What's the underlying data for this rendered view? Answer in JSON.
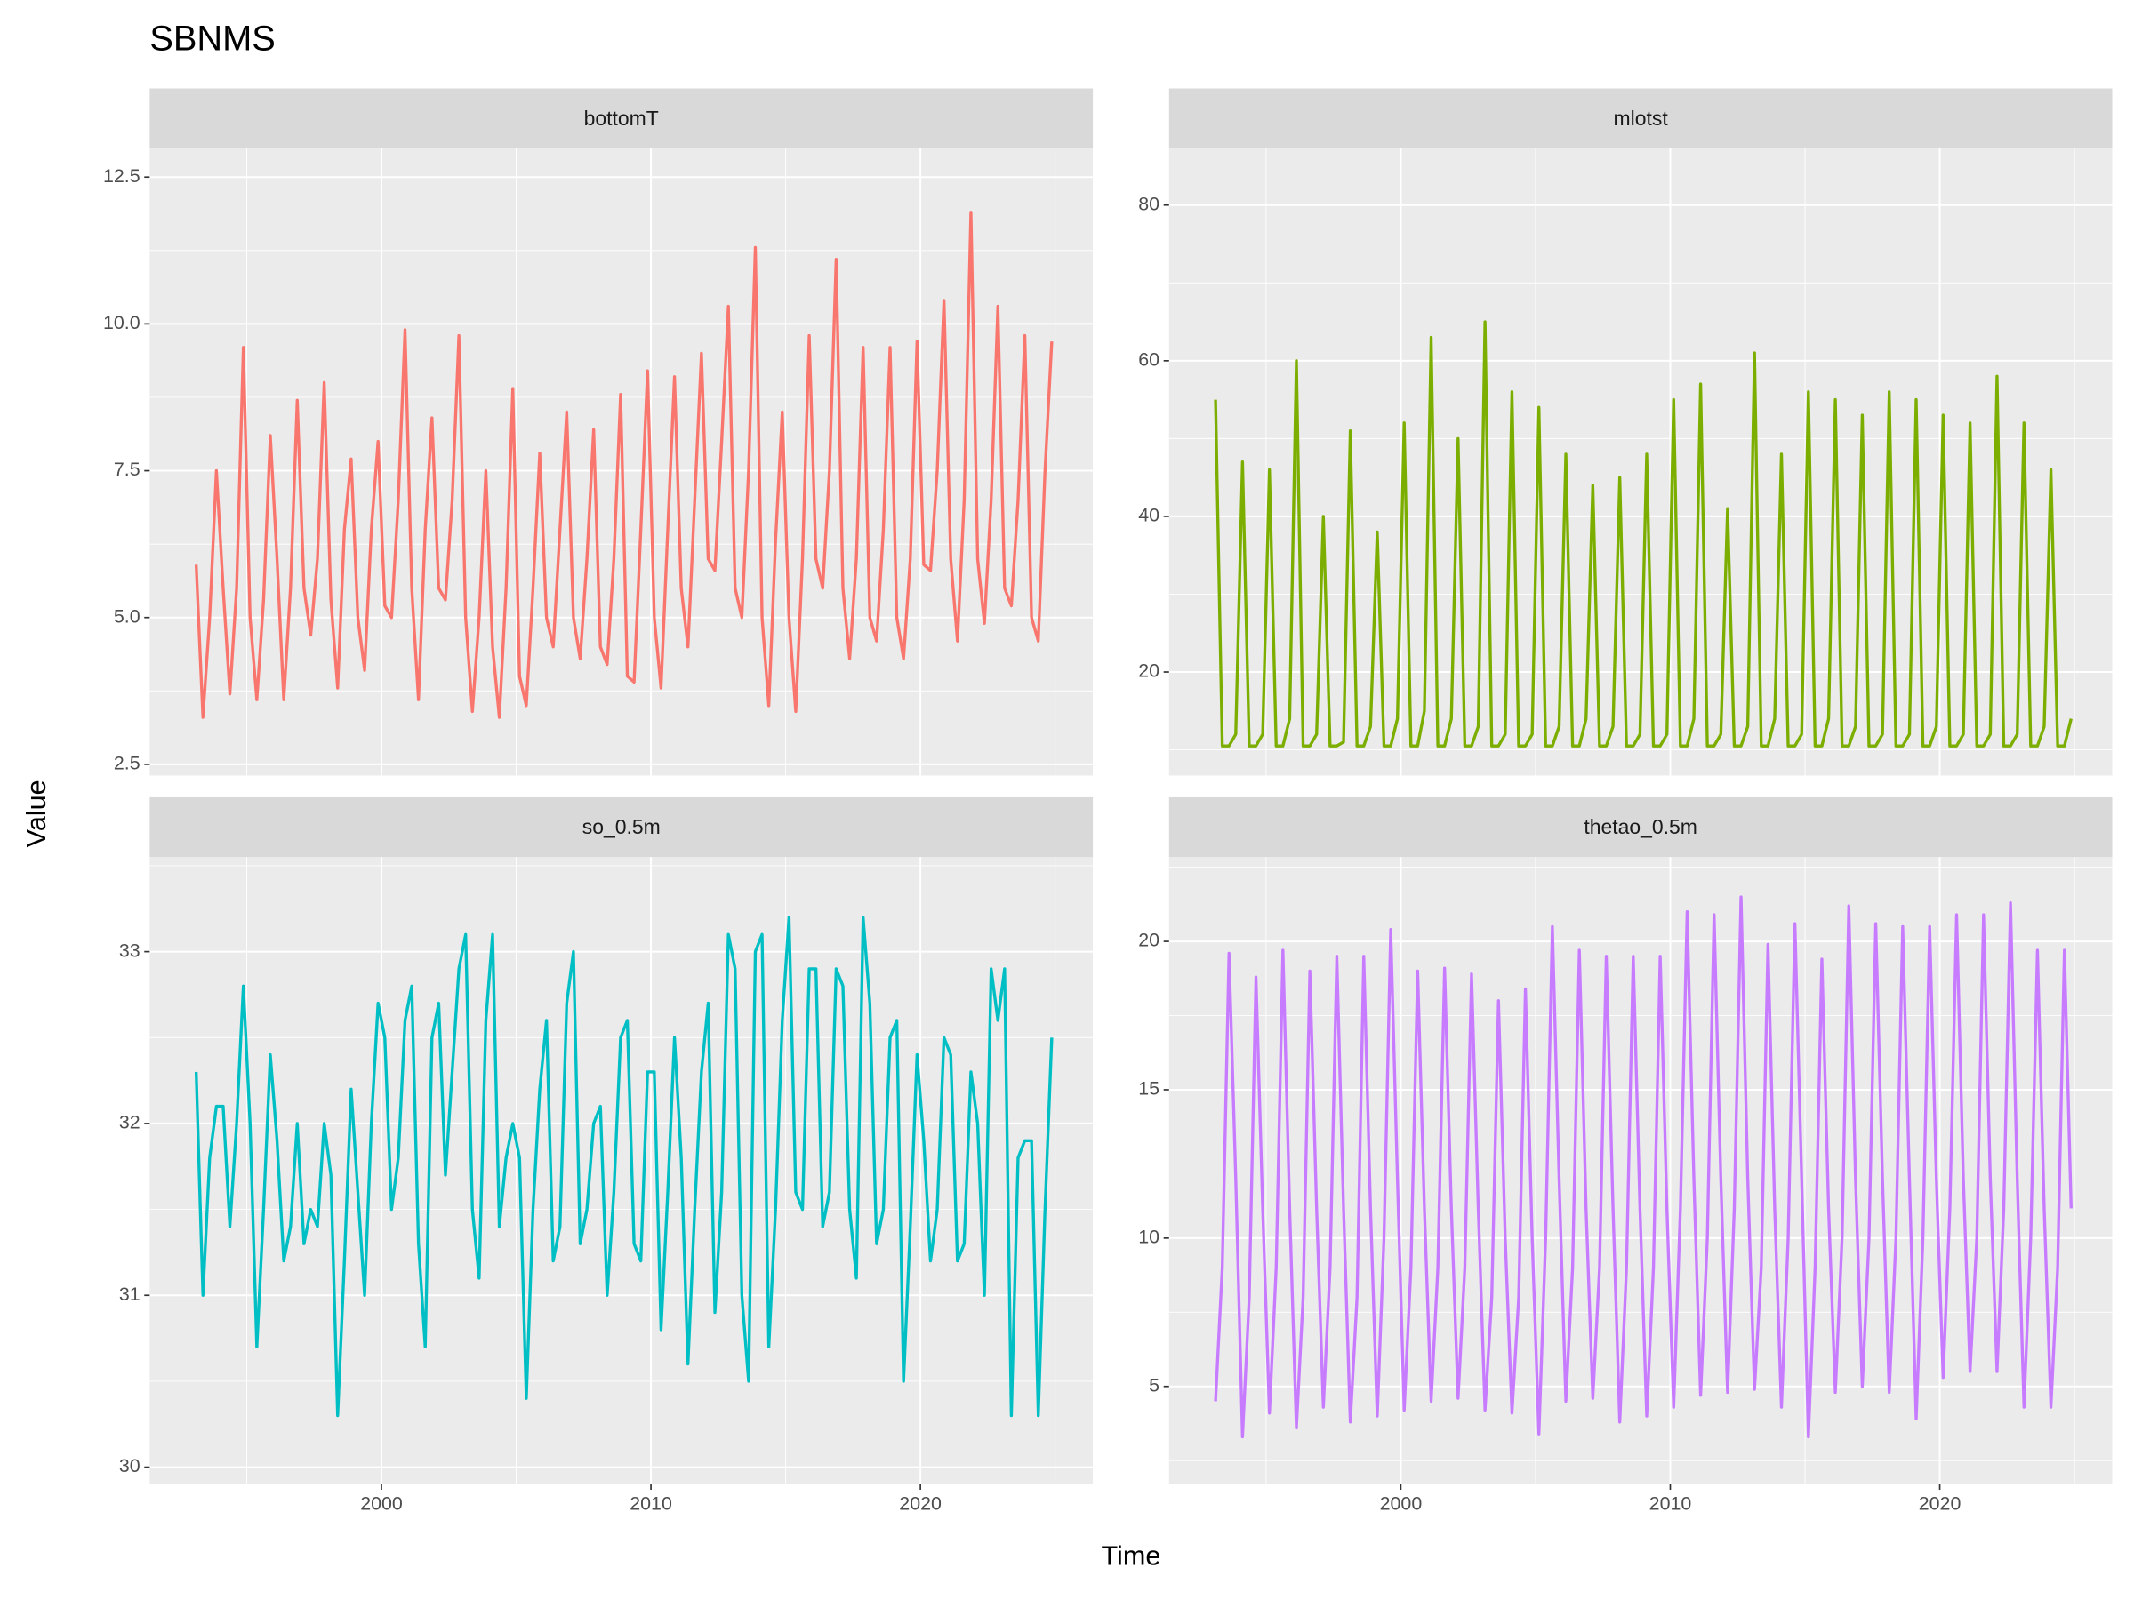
{
  "title": "SBNMS",
  "x_label": "Time",
  "y_label": "Value",
  "chart_data": {
    "type": "line",
    "x": [
      1993.125,
      1993.375,
      1993.625,
      1993.875,
      1994.125,
      1994.375,
      1994.625,
      1994.875,
      1995.125,
      1995.375,
      1995.625,
      1995.875,
      1996.125,
      1996.375,
      1996.625,
      1996.875,
      1997.125,
      1997.375,
      1997.625,
      1997.875,
      1998.125,
      1998.375,
      1998.625,
      1998.875,
      1999.125,
      1999.375,
      1999.625,
      1999.875,
      2000.125,
      2000.375,
      2000.625,
      2000.875,
      2001.125,
      2001.375,
      2001.625,
      2001.875,
      2002.125,
      2002.375,
      2002.625,
      2002.875,
      2003.125,
      2003.375,
      2003.625,
      2003.875,
      2004.125,
      2004.375,
      2004.625,
      2004.875,
      2005.125,
      2005.375,
      2005.625,
      2005.875,
      2006.125,
      2006.375,
      2006.625,
      2006.875,
      2007.125,
      2007.375,
      2007.625,
      2007.875,
      2008.125,
      2008.375,
      2008.625,
      2008.875,
      2009.125,
      2009.375,
      2009.625,
      2009.875,
      2010.125,
      2010.375,
      2010.625,
      2010.875,
      2011.125,
      2011.375,
      2011.625,
      2011.875,
      2012.125,
      2012.375,
      2012.625,
      2012.875,
      2013.125,
      2013.375,
      2013.625,
      2013.875,
      2014.125,
      2014.375,
      2014.625,
      2014.875,
      2015.125,
      2015.375,
      2015.625,
      2015.875,
      2016.125,
      2016.375,
      2016.625,
      2016.875,
      2017.125,
      2017.375,
      2017.625,
      2017.875,
      2018.125,
      2018.375,
      2018.625,
      2018.875,
      2019.125,
      2019.375,
      2019.625,
      2019.875,
      2020.125,
      2020.375,
      2020.625,
      2020.875,
      2021.125,
      2021.375,
      2021.625,
      2021.875,
      2022.125,
      2022.375,
      2022.625,
      2022.875,
      2023.125,
      2023.375,
      2023.625,
      2023.875,
      2024.125,
      2024.375,
      2024.625,
      2024.875
    ],
    "xlim": [
      1991.4,
      2026.4
    ],
    "xticks": [
      2000,
      2010,
      2020
    ],
    "series": [
      {
        "name": "bottomT",
        "color": "#F8766D",
        "ylim": [
          2.31,
          12.99
        ],
        "yticks": [
          2.5,
          {
            "value": 5,
            "label": "5.0"
          },
          7.5,
          {
            "value": 10,
            "label": "10.0"
          },
          12.5
        ],
        "values": [
          5.9,
          3.3,
          5.0,
          7.5,
          5.5,
          3.7,
          5.5,
          9.6,
          5.0,
          3.6,
          5.3,
          8.1,
          6.0,
          3.6,
          5.5,
          8.7,
          5.5,
          4.7,
          6.0,
          9.0,
          5.3,
          3.8,
          6.5,
          7.7,
          5.0,
          4.1,
          6.5,
          8.0,
          5.2,
          5.0,
          7.0,
          9.9,
          5.5,
          3.6,
          6.5,
          8.4,
          5.5,
          5.3,
          7.0,
          9.8,
          5.0,
          3.4,
          5.0,
          7.5,
          4.5,
          3.3,
          5.5,
          8.9,
          4.0,
          3.5,
          5.5,
          7.8,
          5.0,
          4.5,
          6.5,
          8.5,
          5.0,
          4.3,
          6.0,
          8.2,
          4.5,
          4.2,
          6.0,
          8.8,
          4.0,
          3.9,
          6.5,
          9.2,
          5.0,
          3.8,
          6.5,
          9.1,
          5.5,
          4.5,
          7.0,
          9.5,
          6.0,
          5.8,
          8.0,
          10.3,
          5.5,
          5.0,
          7.5,
          11.3,
          5.0,
          3.5,
          6.3,
          8.5,
          5.0,
          3.4,
          6.0,
          9.8,
          6.0,
          5.5,
          7.5,
          11.1,
          5.5,
          4.3,
          6.0,
          9.6,
          5.0,
          4.6,
          6.5,
          9.6,
          5.0,
          4.3,
          6.0,
          9.7,
          5.9,
          5.8,
          7.5,
          10.4,
          6.0,
          4.6,
          7.0,
          11.9,
          6.0,
          4.9,
          7.0,
          10.3,
          5.5,
          5.2,
          7.0,
          9.8,
          5.0,
          4.6,
          7.5,
          9.7
        ]
      },
      {
        "name": "mlotst",
        "color": "#7CAE00",
        "ylim": [
          6.7,
          87.3
        ],
        "yticks": [
          20,
          40,
          60,
          80
        ],
        "values": [
          55,
          10.5,
          10.5,
          12,
          47,
          10.5,
          10.5,
          12,
          46,
          10.5,
          10.5,
          14,
          60,
          10.5,
          10.5,
          12,
          40,
          10.5,
          10.5,
          11,
          51,
          10.5,
          10.5,
          13,
          38,
          10.5,
          10.5,
          14,
          52,
          10.5,
          10.5,
          15,
          63,
          10.5,
          10.5,
          14,
          50,
          10.5,
          10.5,
          13,
          65,
          10.5,
          10.5,
          12,
          56,
          10.5,
          10.5,
          12,
          54,
          10.5,
          10.5,
          13,
          48,
          10.5,
          10.5,
          14,
          44,
          10.5,
          10.5,
          13,
          45,
          10.5,
          10.5,
          12,
          48,
          10.5,
          10.5,
          12,
          55,
          10.5,
          10.5,
          14,
          57,
          10.5,
          10.5,
          12,
          41,
          10.5,
          10.5,
          13,
          61,
          10.5,
          10.5,
          14,
          48,
          10.5,
          10.5,
          12,
          56,
          10.5,
          10.5,
          14,
          55,
          10.5,
          10.5,
          13,
          53,
          10.5,
          10.5,
          12,
          56,
          10.5,
          10.5,
          12,
          55,
          10.5,
          10.5,
          13,
          53,
          10.5,
          10.5,
          12,
          52,
          10.5,
          10.5,
          12,
          58,
          10.5,
          10.5,
          12,
          52,
          10.5,
          10.5,
          13,
          46,
          10.5,
          10.5,
          14
        ]
      },
      {
        "name": "so_0.5m",
        "color": "#00BFC4",
        "ylim": [
          29.9,
          33.55
        ],
        "yticks": [
          30,
          31,
          32,
          33
        ],
        "values": [
          32.3,
          31.0,
          31.8,
          32.1,
          32.1,
          31.4,
          32.0,
          32.8,
          32.0,
          30.7,
          31.5,
          32.4,
          31.9,
          31.2,
          31.4,
          32.0,
          31.3,
          31.5,
          31.4,
          32.0,
          31.7,
          30.3,
          31.2,
          32.2,
          31.6,
          31.0,
          32.0,
          32.7,
          32.5,
          31.5,
          31.8,
          32.6,
          32.8,
          31.3,
          30.7,
          32.5,
          32.7,
          31.7,
          32.3,
          32.9,
          33.1,
          31.5,
          31.1,
          32.6,
          33.1,
          31.4,
          31.8,
          32.0,
          31.8,
          30.4,
          31.5,
          32.2,
          32.6,
          31.2,
          31.4,
          32.7,
          33.0,
          31.3,
          31.5,
          32.0,
          32.1,
          31.0,
          31.6,
          32.5,
          32.6,
          31.3,
          31.2,
          32.3,
          32.3,
          30.8,
          31.6,
          32.5,
          31.8,
          30.6,
          31.5,
          32.3,
          32.7,
          30.9,
          31.6,
          33.1,
          32.9,
          31.0,
          30.5,
          33.0,
          33.1,
          30.7,
          31.5,
          32.6,
          33.2,
          31.6,
          31.5,
          32.9,
          32.9,
          31.4,
          31.6,
          32.9,
          32.8,
          31.5,
          31.1,
          33.2,
          32.7,
          31.3,
          31.5,
          32.5,
          32.6,
          30.5,
          31.4,
          32.4,
          31.9,
          31.2,
          31.5,
          32.5,
          32.4,
          31.2,
          31.3,
          32.3,
          32.0,
          31.0,
          32.9,
          32.6,
          32.9,
          30.3,
          31.8,
          31.9,
          31.9,
          30.3,
          31.5,
          32.5
        ]
      },
      {
        "name": "thetao_0.5m",
        "color": "#C77CFF",
        "ylim": [
          1.7,
          22.84
        ],
        "yticks": [
          5,
          10,
          15,
          20
        ],
        "values": [
          4.5,
          9,
          19.6,
          12,
          3.3,
          8,
          18.8,
          11,
          4.1,
          9,
          19.7,
          11,
          3.6,
          8,
          19.0,
          11,
          4.3,
          9,
          19.5,
          11,
          3.8,
          8,
          19.5,
          11,
          4.0,
          10,
          20.4,
          12,
          4.2,
          9,
          19.0,
          11,
          4.5,
          9,
          19.1,
          11,
          4.6,
          9,
          18.9,
          11,
          4.2,
          8,
          18.0,
          10,
          4.1,
          8,
          18.4,
          10,
          3.4,
          10,
          20.5,
          12,
          4.5,
          9,
          19.7,
          11,
          4.6,
          9,
          19.5,
          11,
          3.8,
          9,
          19.5,
          11,
          4.0,
          9,
          19.5,
          11,
          4.3,
          11,
          21.0,
          12,
          4.7,
          10,
          20.9,
          12,
          4.8,
          11,
          21.5,
          12,
          4.9,
          9,
          19.9,
          11,
          4.3,
          10,
          20.6,
          12,
          3.3,
          9,
          19.4,
          11,
          4.8,
          10,
          21.2,
          12,
          5.0,
          10,
          20.6,
          12,
          4.8,
          10,
          20.5,
          12,
          3.9,
          10,
          20.5,
          12,
          5.3,
          11,
          20.9,
          12,
          5.5,
          10,
          20.9,
          12,
          5.5,
          11,
          21.3,
          12,
          4.3,
          10,
          19.7,
          11,
          4.3,
          9,
          19.7,
          11
        ]
      }
    ]
  }
}
